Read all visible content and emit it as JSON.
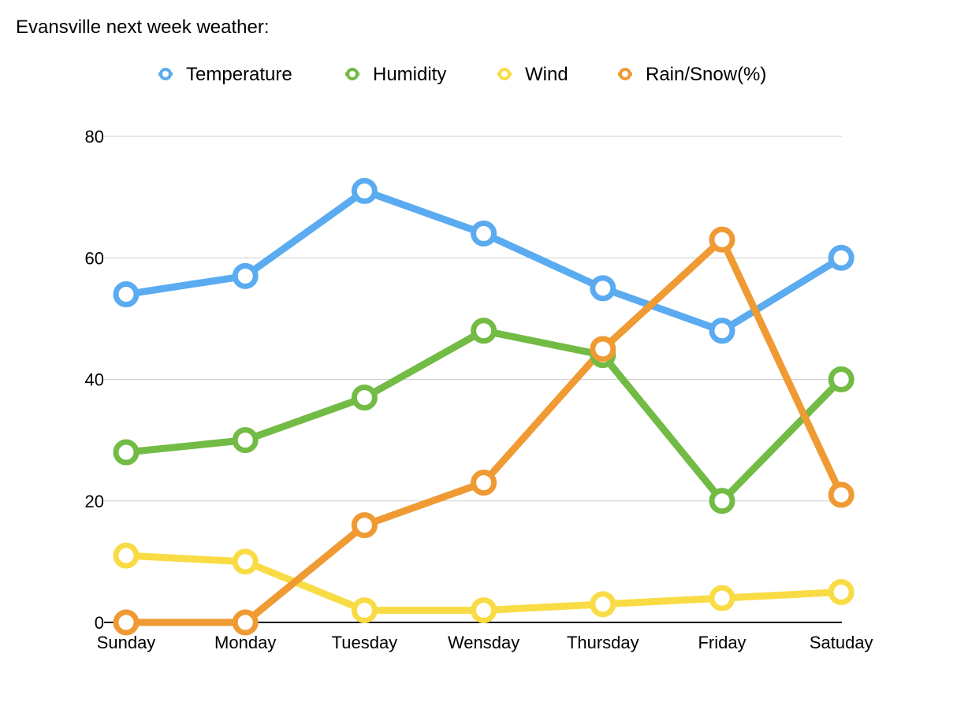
{
  "chart_data": {
    "type": "line",
    "title": "Evansville next week weather:",
    "xlabel": "",
    "ylabel": "",
    "categories": [
      "Sunday",
      "Monday",
      "Tuesday",
      "Wensday",
      "Thursday",
      "Friday",
      "Satuday"
    ],
    "ylim": [
      0,
      80
    ],
    "yticks": [
      0,
      20,
      40,
      60,
      80
    ],
    "grid": true,
    "legend_position": "top",
    "series": [
      {
        "name": "Temperature",
        "color": "#5AABF0",
        "values": [
          54,
          57,
          71,
          64,
          55,
          48,
          60
        ]
      },
      {
        "name": "Humidity",
        "color": "#72BB45",
        "values": [
          28,
          30,
          37,
          48,
          44,
          20,
          40
        ]
      },
      {
        "name": "Wind",
        "color": "#F9DC45",
        "values": [
          11,
          10,
          2,
          2,
          3,
          4,
          5
        ]
      },
      {
        "name": "Rain/Snow(%)",
        "color": "#EF9A33",
        "values": [
          0,
          0,
          16,
          23,
          45,
          63,
          21
        ]
      }
    ]
  }
}
